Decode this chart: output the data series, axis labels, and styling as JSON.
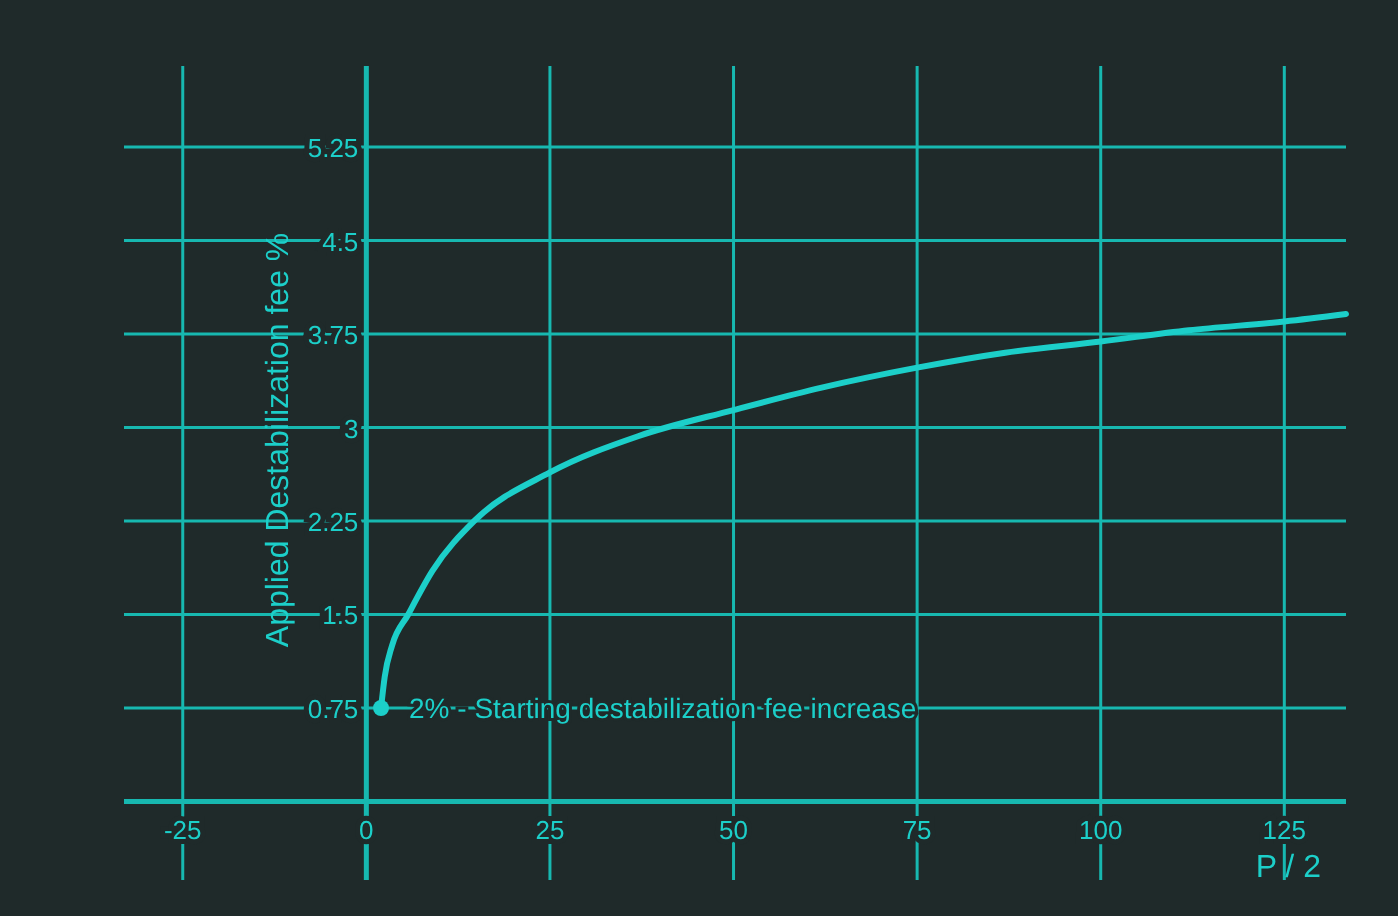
{
  "chart_data": {
    "type": "line",
    "xlabel": "P / 2",
    "ylabel": "Applied Destabilization fee %",
    "xlim": [
      -33,
      133.4
    ],
    "ylim": [
      -0.63,
      5.9
    ],
    "xticks": [
      -25,
      0,
      25,
      50,
      75,
      100,
      125
    ],
    "yticks": [
      0.75,
      1.5,
      2.25,
      3,
      3.75,
      4.5,
      5.25
    ],
    "grid": true,
    "marker": "none",
    "line_style": "solid",
    "series": [
      {
        "color": "#1ccfc9",
        "x": [
          2,
          2.5,
          3.5,
          5.7,
          9,
          14.7,
          25,
          37,
          50,
          62,
          75,
          87,
          100,
          112,
          125,
          133.4
        ],
        "values": [
          0.75,
          1.0,
          1.25,
          1.5,
          1.85,
          2.25,
          2.64,
          2.93,
          3.14,
          3.32,
          3.48,
          3.6,
          3.69,
          3.78,
          3.85,
          3.91
        ]
      }
    ],
    "annotations": [
      {
        "text": "2% - Starting destabilization fee increase",
        "x": 2,
        "y": 0.75
      }
    ]
  }
}
